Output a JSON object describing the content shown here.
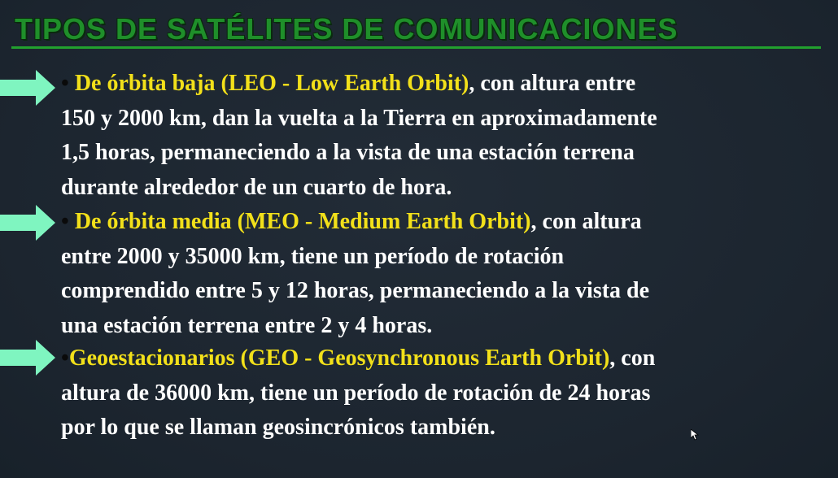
{
  "slide": {
    "title": "TIPOS DE SATÉLITES DE COMUNICACIONES",
    "items": [
      {
        "bullet": "•",
        "highlight": " De órbita baja (LEO - Low Earth Orbit)",
        "text": ", con altura entre\n150 y 2000 km, dan la vuelta a la Tierra en aproximadamente\n1,5 horas, permaneciendo a la vista de una estación terrena\ndurante alrededor de un cuarto de hora."
      },
      {
        "bullet": "•",
        "highlight": "  De órbita media (MEO - Medium Earth Orbit)",
        "text": ", con altura\nentre 2000 y 35000 km, tiene un período de rotación\ncomprendido entre 5 y 12 horas, permaneciendo a la vista de\nuna estación terrena entre 2 y 4 horas."
      },
      {
        "bullet": "•",
        "highlight": "Geoestacionarios (GEO - Geosynchronous Earth Orbit)",
        "text": ", con\naltura de 36000 km, tiene un período de rotación de 24 horas\npor lo que se llaman geosincrónicos también."
      }
    ]
  },
  "colors": {
    "background": "#1d2631",
    "title": "#1f8f2a",
    "highlight": "#f2e01a",
    "text": "#ffffff",
    "arrow": "#7ff5c0"
  },
  "icons": {
    "arrow": "right-arrow-icon",
    "cursor": "mouse-pointer-icon"
  }
}
